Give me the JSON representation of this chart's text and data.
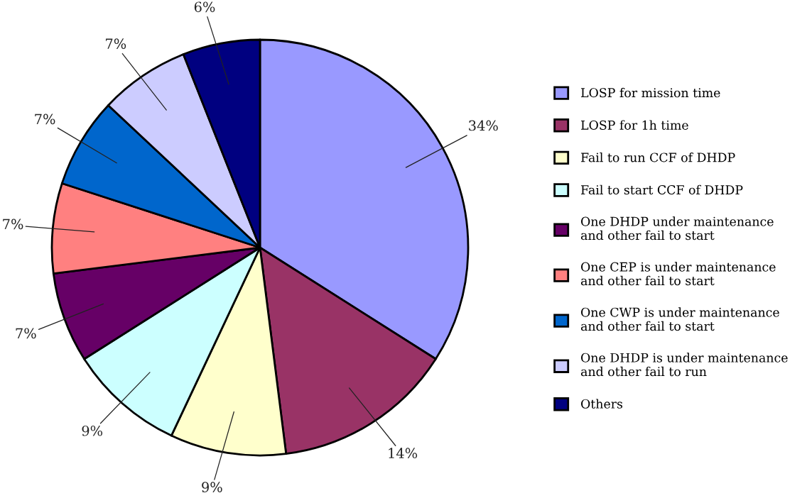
{
  "chart_data": {
    "type": "pie",
    "categories": [
      "LOSP for mission time",
      "LOSP for 1h time",
      "Fail to run CCF of DHDP",
      "Fail to start CCF of DHDP",
      "One DHDP under maintenance\nand other fail to start",
      "One CEP is under maintenance\nand other fail to start",
      "One CWP is under maintenance\nand other fail to start",
      "One DHDP is under maintenance\nand other fail to run",
      "Others"
    ],
    "values": [
      34,
      14,
      9,
      9,
      7,
      7,
      7,
      7,
      6
    ],
    "colors": [
      "#9999ff",
      "#993366",
      "#ffffcc",
      "#ccffff",
      "#660066",
      "#ff8080",
      "#0066cc",
      "#ccccff",
      "#000080"
    ],
    "value_labels": [
      "34%",
      "14%",
      "9%",
      "9%",
      "7%",
      "7%",
      "7%",
      "7%",
      "6%"
    ],
    "legend": "right"
  }
}
